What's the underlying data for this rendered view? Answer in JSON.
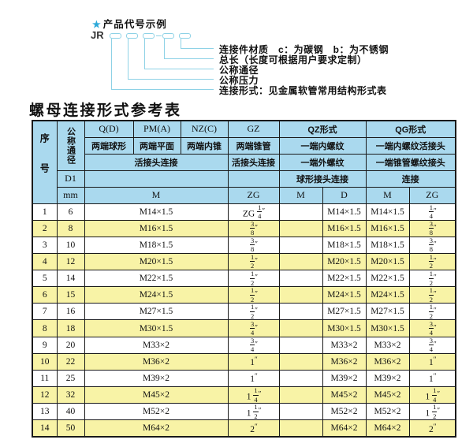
{
  "colors": {
    "header_bg": "#aad9ee",
    "stripe": "#f8f3a6",
    "border": "#1a1a1a",
    "line": "#8ed2e6",
    "accent": "#2ca9d9",
    "text": "#111111"
  },
  "diagram": {
    "star": "★",
    "title": "产品代号示例",
    "prefix": "JR",
    "labels": [
      "连接件材质　c：为碳钢　b：为不锈钢",
      "总长（长度可根据用户要求定制）",
      "公称通径",
      "公称压力",
      "连接形式：见金属软管常用结构形式表"
    ]
  },
  "table": {
    "title": "螺母连接形式参考表",
    "header": {
      "seq": "序号",
      "nominal_diameter": "公称通径",
      "d1": "D1",
      "mm": "mm",
      "col_q": "Q(D)",
      "col_q_desc": "两端球形",
      "col_pm": "PM(A)",
      "col_pm_desc": "两端平面",
      "col_nz": "NZ(C)",
      "col_nz_desc": "两端内锥",
      "col_gz": "GZ",
      "col_gz_desc": "两端锥管",
      "union_connection_left": "活接头连接",
      "union_connection_gz": "活接头连接",
      "col_qz": "QZ形式",
      "qz_desc1": "一端内螺纹",
      "qz_desc2": "一端外螺纹",
      "qz_desc3": "球形接头连接",
      "col_qg": "QG形式",
      "qg_desc1": "一端内螺纹活接头",
      "qg_desc2": "一端锥管螺纹接头",
      "qg_desc3": "连接",
      "m_left": "M",
      "zg_gz": "ZG",
      "m_qz": "M",
      "d_qz": "D",
      "m_qg": "M",
      "zg_qg": "ZG"
    },
    "rows": [
      {
        "seq": "1",
        "mm": "6",
        "m": "M14×1.5",
        "zg": "ZG {1/4}″",
        "qz_m": "",
        "qz_d": "M14×1.5",
        "qg_m": "M14×1.5",
        "qg_zg": "{1/4}″"
      },
      {
        "seq": "2",
        "mm": "8",
        "m": "M16×1.5",
        "zg": "{3/8}″",
        "qz_m": "",
        "qz_d": "M16×1.5",
        "qg_m": "M16×1.5",
        "qg_zg": "{3/8}″"
      },
      {
        "seq": "3",
        "mm": "10",
        "m": "M18×1.5",
        "zg": "{3/8}″",
        "qz_m": "",
        "qz_d": "M18×1.5",
        "qg_m": "M18×1.5",
        "qg_zg": "{3/8}″"
      },
      {
        "seq": "4",
        "mm": "12",
        "m": "M20×1.5",
        "zg": "{1/2}″",
        "qz_m": "",
        "qz_d": "M20×1.5",
        "qg_m": "M20×1.5",
        "qg_zg": "{1/2}″"
      },
      {
        "seq": "5",
        "mm": "14",
        "m": "M22×1.5",
        "zg": "{1/2}″",
        "qz_m": "",
        "qz_d": "M22×1.5",
        "qg_m": "M22×1.5",
        "qg_zg": "{1/2}″"
      },
      {
        "seq": "6",
        "mm": "15",
        "m": "M24×1.5",
        "zg": "{1/2}″",
        "qz_m": "",
        "qz_d": "M24×1.5",
        "qg_m": "M24×1.5",
        "qg_zg": "{1/2}″"
      },
      {
        "seq": "7",
        "mm": "16",
        "m": "M27×1.5",
        "zg": "{1/2}″",
        "qz_m": "",
        "qz_d": "M27×1.5",
        "qg_m": "M27×1.5",
        "qg_zg": "{1/2}″"
      },
      {
        "seq": "8",
        "mm": "18",
        "m": "M30×1.5",
        "zg": "{3/4}″",
        "qz_m": "",
        "qz_d": "M30×1.5",
        "qg_m": "M30×1.5",
        "qg_zg": "{3/4}″"
      },
      {
        "seq": "9",
        "mm": "20",
        "m": "M33×2",
        "zg": "{3/4}″",
        "qz_m": "",
        "qz_d": "M33×2",
        "qg_m": "M33×2",
        "qg_zg": "{3/4}″"
      },
      {
        "seq": "10",
        "mm": "22",
        "m": "M36×2",
        "zg": "1″",
        "qz_m": "",
        "qz_d": "M36×2",
        "qg_m": "M36×2",
        "qg_zg": "1″"
      },
      {
        "seq": "11",
        "mm": "25",
        "m": "M39×2",
        "zg": "1″",
        "qz_m": "",
        "qz_d": "M39×2",
        "qg_m": "M39×2",
        "qg_zg": "1″"
      },
      {
        "seq": "12",
        "mm": "32",
        "m": "M45×2",
        "zg": "1 {1/4}″",
        "qz_m": "",
        "qz_d": "M45×2",
        "qg_m": "M45×2",
        "qg_zg": "1 {1/4}″"
      },
      {
        "seq": "13",
        "mm": "40",
        "m": "M52×2",
        "zg": "1 {1/2}″",
        "qz_m": "",
        "qz_d": "M52×2",
        "qg_m": "M52×2",
        "qg_zg": "1 {1/2}″"
      },
      {
        "seq": "14",
        "mm": "50",
        "m": "M64×2",
        "zg": "2″",
        "qz_m": "",
        "qz_d": "M64×2",
        "qg_m": "M64×2",
        "qg_zg": "2″"
      }
    ]
  },
  "diagram_geometry_note": "five code boxes between prefix JR and labels"
}
